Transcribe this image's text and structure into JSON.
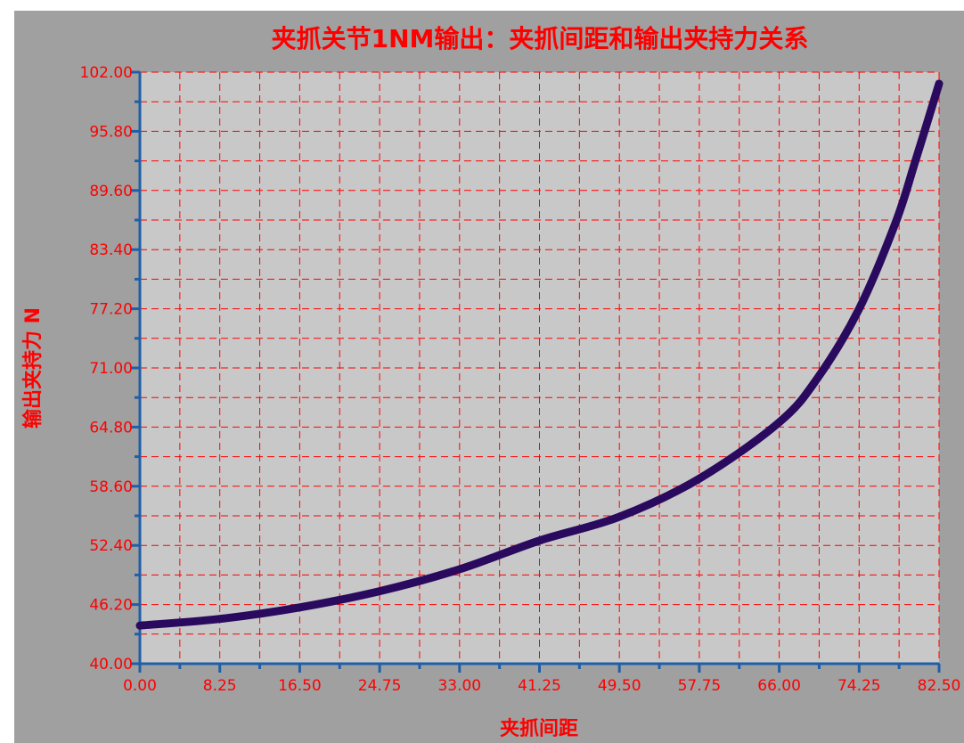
{
  "chart_data": {
    "type": "line",
    "title": "夹抓关节1NM输出：夹抓间距和输出夹持力关系",
    "xlabel": "夹抓间距",
    "ylabel": "输出夹持力 N",
    "xlim": [
      0,
      82.5
    ],
    "ylim": [
      40,
      102
    ],
    "x_ticks": [
      "0.00",
      "8.25",
      "16.50",
      "24.75",
      "33.00",
      "41.25",
      "49.50",
      "57.75",
      "66.00",
      "74.25",
      "82.50"
    ],
    "y_ticks": [
      "40.00",
      "46.20",
      "52.40",
      "58.60",
      "64.80",
      "71.00",
      "77.20",
      "83.40",
      "89.60",
      "95.80",
      "102.00"
    ],
    "grid": true,
    "legend": "none",
    "colors": {
      "background": "#a0a0a0",
      "plot": "#c8c8c8",
      "grid": "#ff0000",
      "axis": "#1f5fa8",
      "line": "#2a0a5e",
      "text": "#ff0000"
    },
    "series": [
      {
        "x": [
          0,
          8.25,
          16.5,
          24.75,
          33,
          41.25,
          49.5,
          57.75,
          66,
          70,
          74.25,
          78,
          80,
          82.5
        ],
        "values": [
          44.0,
          44.7,
          45.9,
          47.6,
          49.9,
          52.9,
          55.4,
          59.4,
          65.3,
          70.0,
          77.2,
          86.2,
          92.5,
          100.8
        ]
      }
    ]
  }
}
